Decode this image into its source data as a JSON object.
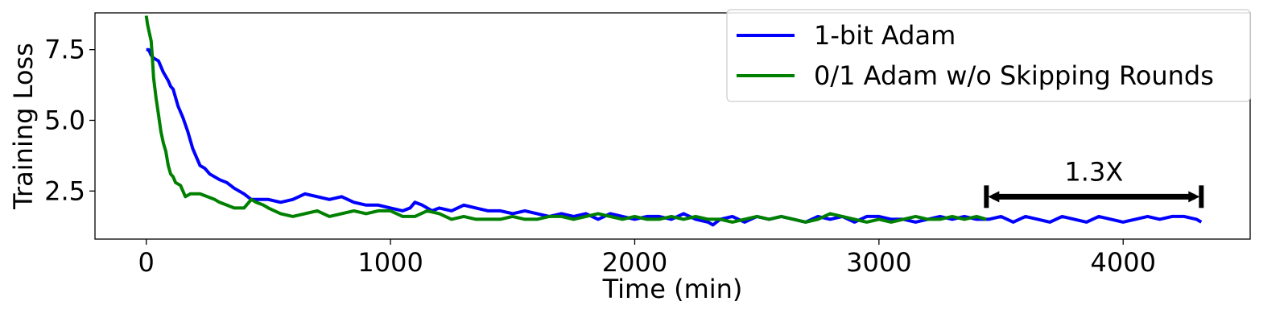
{
  "chart_data": {
    "type": "line",
    "xlabel": "Time (min)",
    "ylabel": "Training Loss",
    "xlim": [
      -210,
      4520
    ],
    "ylim": [
      0.8,
      8.8
    ],
    "xticks": [
      {
        "value": 0,
        "label": "0"
      },
      {
        "value": 1000,
        "label": "1000"
      },
      {
        "value": 2000,
        "label": "2000"
      },
      {
        "value": 3000,
        "label": "3000"
      },
      {
        "value": 4000,
        "label": "4000"
      }
    ],
    "yticks": [
      {
        "value": 2.5,
        "label": "2.5"
      },
      {
        "value": 5.0,
        "label": "5.0"
      },
      {
        "value": 7.5,
        "label": "7.5"
      }
    ],
    "grid": false,
    "legend_position": "top-right",
    "series": [
      {
        "name": "1-bit Adam",
        "color": "#0000ff",
        "x": [
          0,
          10,
          20,
          30,
          50,
          70,
          90,
          100,
          110,
          130,
          150,
          170,
          190,
          200,
          220,
          240,
          260,
          280,
          300,
          330,
          360,
          380,
          400,
          430,
          460,
          500,
          550,
          600,
          650,
          700,
          750,
          800,
          850,
          900,
          950,
          1000,
          1050,
          1080,
          1100,
          1130,
          1170,
          1200,
          1250,
          1300,
          1350,
          1400,
          1450,
          1500,
          1550,
          1600,
          1650,
          1700,
          1750,
          1800,
          1850,
          1900,
          1950,
          2000,
          2050,
          2100,
          2150,
          2200,
          2250,
          2300,
          2320,
          2350,
          2400,
          2450,
          2500,
          2550,
          2600,
          2650,
          2700,
          2750,
          2800,
          2850,
          2900,
          2950,
          3000,
          3050,
          3100,
          3150,
          3200,
          3250,
          3300,
          3350,
          3400,
          3450,
          3500,
          3550,
          3600,
          3650,
          3700,
          3750,
          3800,
          3850,
          3900,
          3950,
          4000,
          4050,
          4100,
          4150,
          4200,
          4250,
          4300,
          4320
        ],
        "values": [
          7.5,
          7.5,
          7.3,
          7.2,
          7.1,
          6.7,
          6.4,
          6.2,
          6.1,
          5.5,
          5.1,
          4.6,
          4.0,
          3.8,
          3.4,
          3.3,
          3.1,
          3.0,
          2.9,
          2.8,
          2.6,
          2.5,
          2.4,
          2.2,
          2.2,
          2.2,
          2.1,
          2.2,
          2.4,
          2.3,
          2.2,
          2.3,
          2.1,
          2.0,
          2.0,
          1.9,
          1.8,
          1.9,
          2.1,
          2.0,
          1.8,
          1.9,
          1.8,
          2.0,
          1.9,
          1.8,
          1.8,
          1.7,
          1.8,
          1.7,
          1.6,
          1.7,
          1.6,
          1.7,
          1.5,
          1.7,
          1.6,
          1.5,
          1.6,
          1.6,
          1.5,
          1.7,
          1.5,
          1.4,
          1.3,
          1.5,
          1.6,
          1.4,
          1.6,
          1.5,
          1.6,
          1.5,
          1.4,
          1.6,
          1.5,
          1.6,
          1.4,
          1.6,
          1.6,
          1.5,
          1.5,
          1.4,
          1.5,
          1.6,
          1.5,
          1.6,
          1.5,
          1.5,
          1.6,
          1.4,
          1.6,
          1.5,
          1.4,
          1.6,
          1.5,
          1.4,
          1.6,
          1.5,
          1.4,
          1.5,
          1.6,
          1.5,
          1.6,
          1.6,
          1.5,
          1.4
        ]
      },
      {
        "name": "0/1 Adam w/o Skipping Rounds",
        "color": "#008000",
        "x": [
          0,
          5,
          10,
          20,
          25,
          30,
          40,
          50,
          60,
          70,
          80,
          90,
          100,
          110,
          120,
          140,
          160,
          180,
          200,
          220,
          250,
          280,
          300,
          330,
          360,
          400,
          430,
          450,
          480,
          500,
          550,
          600,
          650,
          700,
          750,
          800,
          850,
          900,
          950,
          1000,
          1050,
          1100,
          1150,
          1200,
          1250,
          1300,
          1350,
          1400,
          1450,
          1500,
          1550,
          1600,
          1650,
          1700,
          1750,
          1800,
          1850,
          1900,
          1950,
          2000,
          2050,
          2100,
          2150,
          2200,
          2250,
          2300,
          2350,
          2400,
          2450,
          2500,
          2550,
          2600,
          2650,
          2700,
          2750,
          2800,
          2850,
          2900,
          2950,
          3000,
          3050,
          3100,
          3150,
          3200,
          3250,
          3300,
          3350,
          3400,
          3440
        ],
        "values": [
          8.7,
          8.4,
          8.2,
          7.8,
          7.2,
          6.5,
          5.8,
          5.2,
          4.6,
          4.2,
          3.9,
          3.4,
          3.1,
          3.0,
          2.8,
          2.7,
          2.3,
          2.4,
          2.4,
          2.4,
          2.3,
          2.2,
          2.1,
          2.0,
          1.9,
          1.9,
          2.2,
          2.1,
          2.0,
          1.9,
          1.7,
          1.6,
          1.7,
          1.8,
          1.6,
          1.7,
          1.8,
          1.7,
          1.8,
          1.8,
          1.6,
          1.6,
          1.8,
          1.7,
          1.5,
          1.6,
          1.5,
          1.5,
          1.5,
          1.6,
          1.5,
          1.5,
          1.6,
          1.6,
          1.5,
          1.6,
          1.7,
          1.6,
          1.5,
          1.6,
          1.5,
          1.5,
          1.6,
          1.5,
          1.6,
          1.5,
          1.5,
          1.4,
          1.5,
          1.6,
          1.5,
          1.6,
          1.5,
          1.4,
          1.5,
          1.7,
          1.6,
          1.5,
          1.4,
          1.5,
          1.4,
          1.5,
          1.6,
          1.5,
          1.5,
          1.6,
          1.5,
          1.6,
          1.5
        ]
      }
    ],
    "annotation": {
      "text": "1.3X",
      "x_start": 3440,
      "x_end": 4320,
      "y": 2.3,
      "color": "#000000"
    }
  }
}
